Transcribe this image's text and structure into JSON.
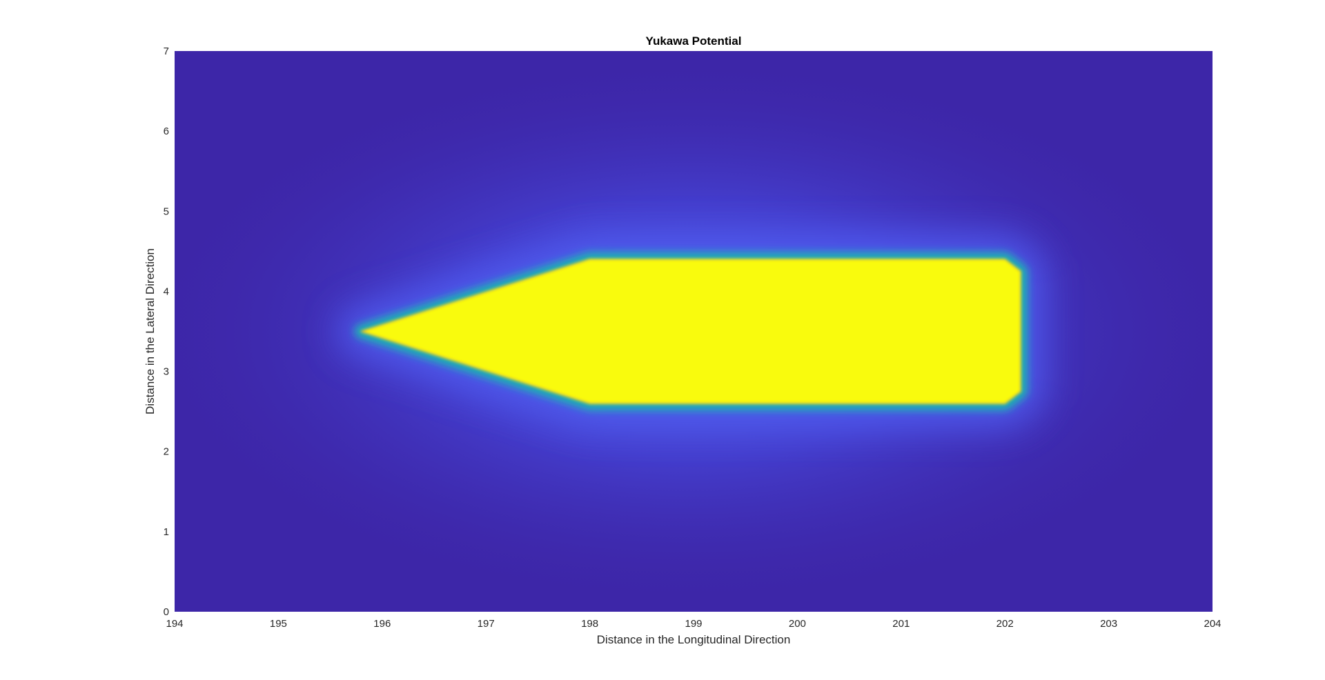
{
  "chart_data": {
    "type": "heatmap",
    "title": "Yukawa Potential",
    "xlabel": "Distance in the Longitudinal Direction",
    "ylabel": "Distance in the Lateral Direction",
    "xlim": [
      194,
      204
    ],
    "ylim": [
      0,
      7
    ],
    "xticks": [
      "194",
      "195",
      "196",
      "197",
      "198",
      "199",
      "200",
      "201",
      "202",
      "203",
      "204"
    ],
    "yticks": [
      "0",
      "1",
      "2",
      "3",
      "4",
      "5",
      "6",
      "7"
    ],
    "colormap": "parula",
    "colors": {
      "low": "#3d26a8",
      "mid": "#4f5bf0",
      "high": "#f9fb0e",
      "edge": "#1ab4b0"
    },
    "vehicle_shape": {
      "description_points": [
        {
          "x": 195.8,
          "y": 3.5
        },
        {
          "x": 198.0,
          "y": 4.4
        },
        {
          "x": 202.0,
          "y": 4.4
        },
        {
          "x": 202.15,
          "y": 4.25
        },
        {
          "x": 202.15,
          "y": 2.75
        },
        {
          "x": 202.0,
          "y": 2.6
        },
        {
          "x": 198.0,
          "y": 2.6
        }
      ]
    }
  }
}
